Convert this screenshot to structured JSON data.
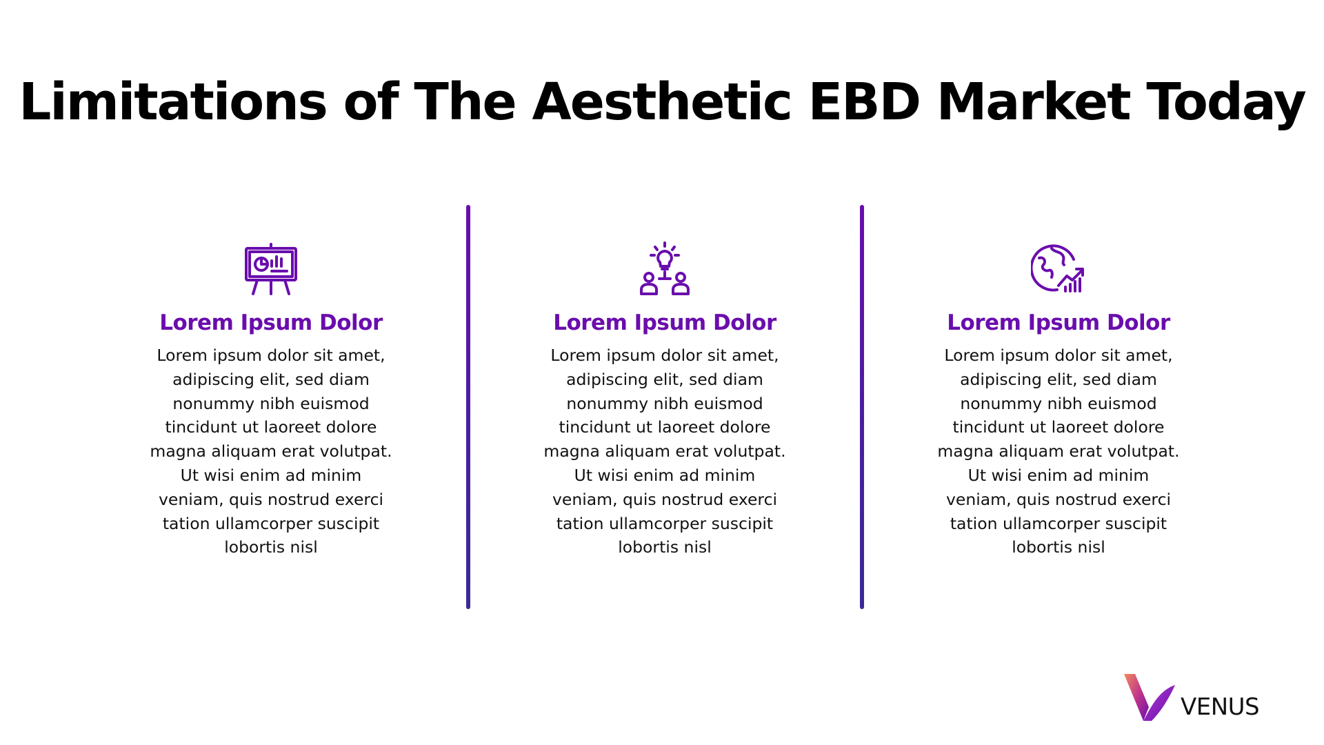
{
  "slide": {
    "title": "Limitations of The Aesthetic EBD Market Today"
  },
  "columns": [
    {
      "icon": "presentation-board-icon",
      "heading": "Lorem Ipsum Dolor",
      "body": "Lorem ipsum dolor sit amet, adipiscing elit, sed diam nonummy nibh euismod tincidunt ut laoreet dolore magna aliquam erat volutpat. Ut wisi enim ad minim veniam, quis nostrud exerci tation ullamcorper suscipit lobortis nisl"
    },
    {
      "icon": "team-idea-lightbulb-icon",
      "heading": "Lorem Ipsum Dolor",
      "body": "Lorem ipsum dolor sit amet, adipiscing elit, sed diam nonummy nibh euismod tincidunt ut laoreet dolore magna aliquam erat volutpat. Ut wisi enim ad minim veniam, quis nostrud exerci tation ullamcorper suscipit lobortis nisl"
    },
    {
      "icon": "global-growth-icon",
      "heading": "Lorem Ipsum Dolor",
      "body": "Lorem ipsum dolor sit amet, adipiscing elit, sed diam nonummy nibh euismod tincidunt ut laoreet dolore magna aliquam erat volutpat. Ut wisi enim ad minim veniam, quis nostrud exerci tation ullamcorper suscipit lobortis nisl"
    }
  ],
  "logo": {
    "text": "VENUS",
    "icon": "venus-logo-mark"
  },
  "colors": {
    "accent": "#6a0dad",
    "divider_bottom": "#3a2a95",
    "text": "#111111",
    "background": "#ffffff"
  }
}
